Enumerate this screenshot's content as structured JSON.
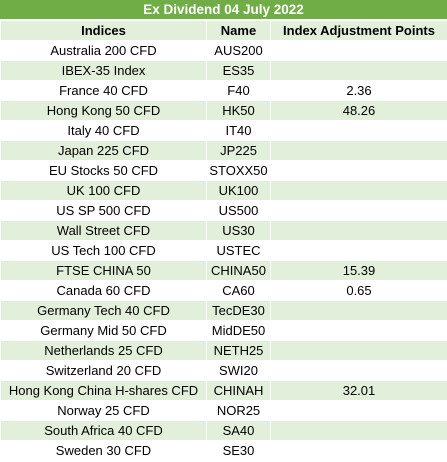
{
  "title": "Ex Dividend 04 July 2022",
  "columns": {
    "indices": "Indices",
    "name": "Name",
    "points": "Index Adjustment Points"
  },
  "rows": [
    {
      "index": "Australia 200 CFD",
      "name": "AUS200",
      "points": ""
    },
    {
      "index": "IBEX-35 Index",
      "name": "ES35",
      "points": ""
    },
    {
      "index": "France 40 CFD",
      "name": "F40",
      "points": "2.36"
    },
    {
      "index": "Hong Kong 50 CFD",
      "name": "HK50",
      "points": "48.26"
    },
    {
      "index": "Italy 40 CFD",
      "name": "IT40",
      "points": ""
    },
    {
      "index": "Japan 225 CFD",
      "name": "JP225",
      "points": ""
    },
    {
      "index": "EU Stocks 50 CFD",
      "name": "STOXX50",
      "points": ""
    },
    {
      "index": "UK 100 CFD",
      "name": "UK100",
      "points": ""
    },
    {
      "index": "US SP 500 CFD",
      "name": "US500",
      "points": ""
    },
    {
      "index": "Wall Street CFD",
      "name": "US30",
      "points": ""
    },
    {
      "index": "US Tech 100 CFD",
      "name": "USTEC",
      "points": ""
    },
    {
      "index": "FTSE CHINA 50",
      "name": "CHINA50",
      "points": "15.39"
    },
    {
      "index": "Canada 60 CFD",
      "name": "CA60",
      "points": "0.65"
    },
    {
      "index": "Germany Tech 40 CFD",
      "name": "TecDE30",
      "points": ""
    },
    {
      "index": "Germany Mid 50 CFD",
      "name": "MidDE50",
      "points": ""
    },
    {
      "index": "Netherlands 25 CFD",
      "name": "NETH25",
      "points": ""
    },
    {
      "index": "Switzerland 20 CFD",
      "name": "SWI20",
      "points": ""
    },
    {
      "index": "Hong Kong China H-shares CFD",
      "name": "CHINAH",
      "points": "32.01"
    },
    {
      "index": "Norway 25 CFD",
      "name": "NOR25",
      "points": ""
    },
    {
      "index": "South Africa 40 CFD",
      "name": "SA40",
      "points": ""
    },
    {
      "index": "Sweden 30 CFD",
      "name": "SE30",
      "points": ""
    }
  ],
  "colors": {
    "header_bar": "#70ad47",
    "band": "#e2efda",
    "row_alt": "#ffffff"
  }
}
